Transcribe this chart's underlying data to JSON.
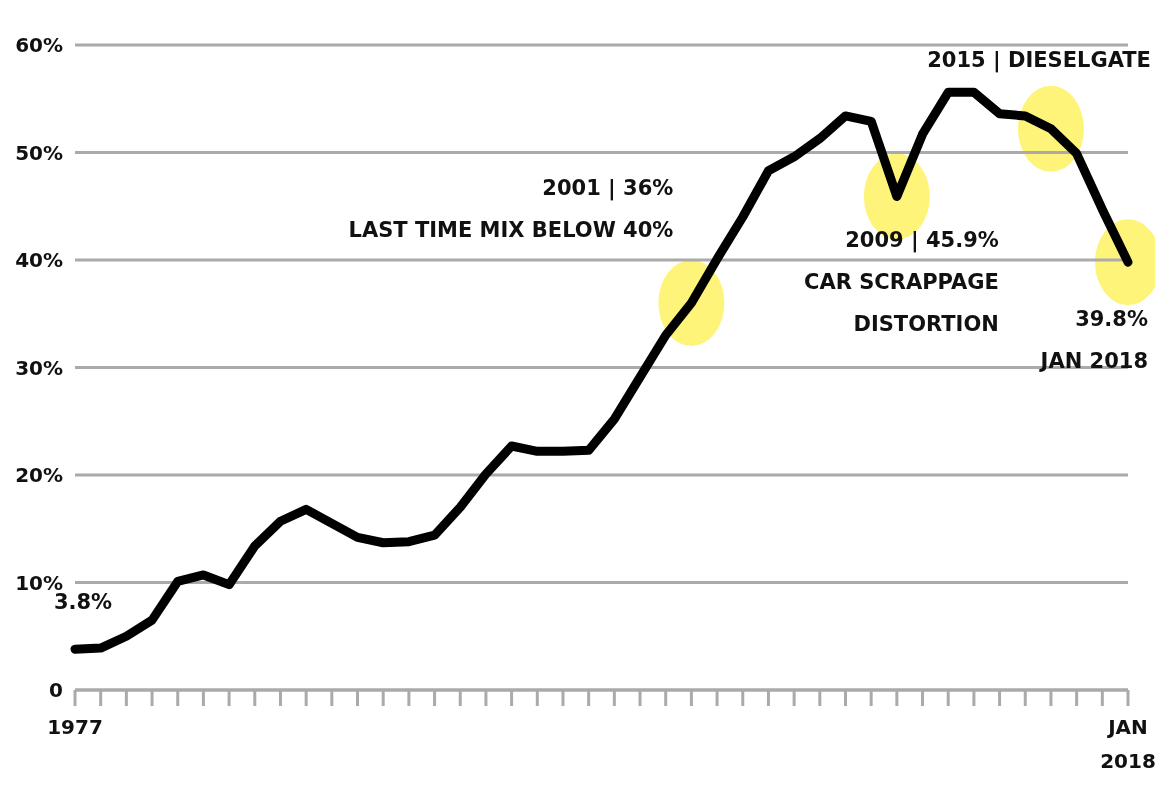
{
  "chart_data": {
    "type": "line",
    "categories": [
      "1977",
      null,
      null,
      null,
      null,
      null,
      null,
      null,
      null,
      null,
      null,
      null,
      null,
      null,
      null,
      null,
      null,
      null,
      null,
      null,
      null,
      null,
      null,
      null,
      null,
      null,
      null,
      null,
      null,
      null,
      null,
      null,
      null,
      null,
      null,
      null,
      null,
      null,
      null,
      null,
      null,
      "JAN 2018"
    ],
    "series": [
      {
        "color": "#000000",
        "values": [
          3.8,
          3.9,
          5.0,
          6.5,
          10.1,
          10.7,
          9.8,
          13.4,
          15.7,
          16.8,
          15.5,
          14.2,
          13.7,
          13.8,
          14.4,
          17.0,
          20.1,
          22.7,
          22.2,
          22.2,
          22.3,
          25.2,
          29.1,
          33.0,
          36,
          40.1,
          44.0,
          48.3,
          49.6,
          51.3,
          53.4,
          52.9,
          45.9,
          51.7,
          55.6,
          55.6,
          53.6,
          53.4,
          52.2,
          49.9,
          44.7,
          39.8
        ]
      }
    ],
    "ylim": [
      0,
      60
    ],
    "yticks": [
      {
        "value": 0,
        "label": "0"
      },
      {
        "value": 10,
        "label": "10%"
      },
      {
        "value": 20,
        "label": "20%"
      },
      {
        "value": 30,
        "label": "30%"
      },
      {
        "value": 40,
        "label": "40%"
      },
      {
        "value": 50,
        "label": "50%"
      },
      {
        "value": 60,
        "label": "60%"
      }
    ],
    "grid": "y",
    "marker": "none",
    "line_style": "solid",
    "annotations": [
      "3.8%",
      "2001 | 36%\nLAST TIME MIX BELOW 40%",
      "2009 | 45.9%\nCAR SCRAPPAGE\nDISTORTION",
      "2015 | DIESELGATE",
      "39.8%\nJAN 2018"
    ]
  }
}
